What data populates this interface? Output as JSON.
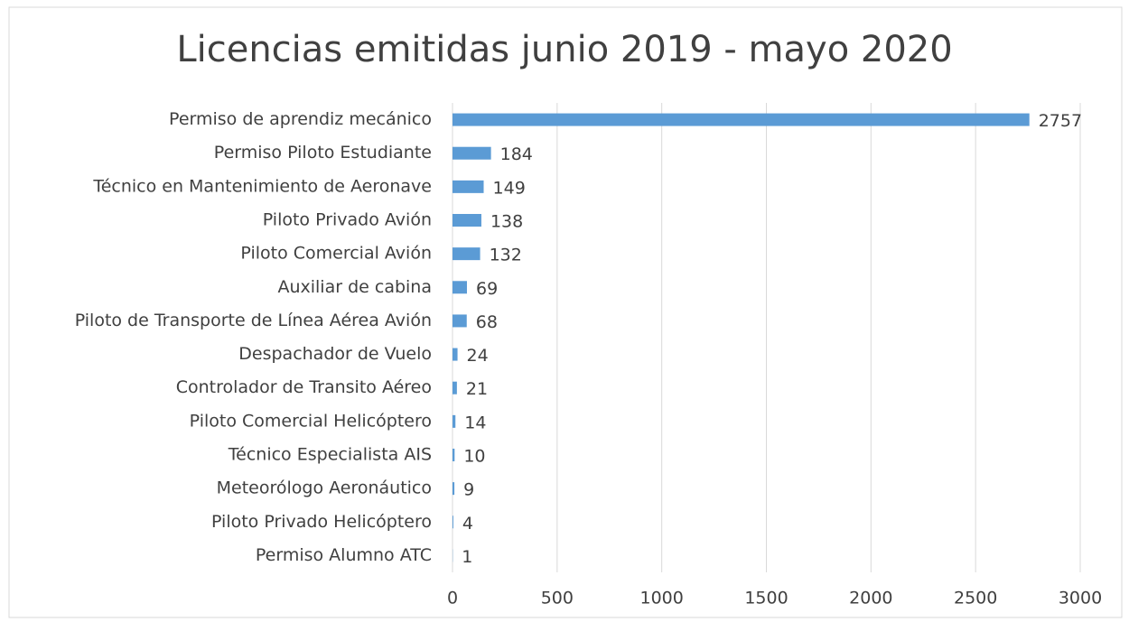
{
  "chart_data": {
    "type": "barh",
    "title": "Licencias emitidas junio 2019 - mayo 2020",
    "categories": [
      "Permiso de aprendiz mecánico",
      "Permiso Piloto Estudiante",
      "Técnico en Mantenimiento de Aeronave",
      "Piloto Privado Avión",
      "Piloto Comercial Avión",
      "Auxiliar de cabina",
      "Piloto de Transporte de Línea Aérea Avión",
      "Despachador de Vuelo",
      "Controlador de Transito Aéreo",
      "Piloto Comercial Helicóptero",
      "Técnico Especialista AIS",
      "Meteorólogo Aeronáutico",
      "Piloto Privado Helicóptero",
      "Permiso Alumno ATC"
    ],
    "values": [
      2757,
      184,
      149,
      138,
      132,
      69,
      68,
      24,
      21,
      14,
      10,
      9,
      4,
      1
    ],
    "color": "#5b9bd5",
    "xlim": [
      0,
      3000
    ],
    "xticks": [
      0,
      500,
      1000,
      1500,
      2000,
      2500,
      3000
    ],
    "grid": true
  }
}
